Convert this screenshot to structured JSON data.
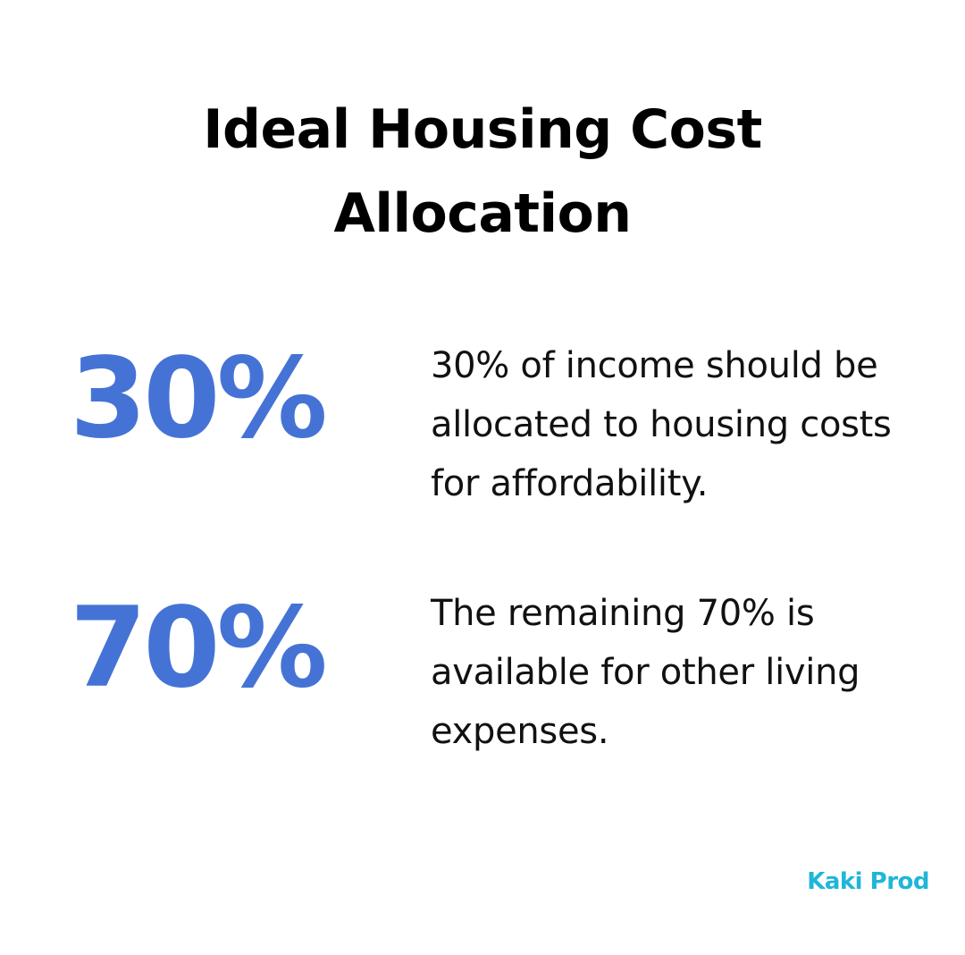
{
  "title": "Ideal Housing Cost Allocation",
  "stats": [
    {
      "value": "30%",
      "description": "30% of income should be allocated to housing costs for affordability."
    },
    {
      "value": "70%",
      "description": "The remaining 70% is available for other living expenses."
    }
  ],
  "brand": "Kaki Prod",
  "colors": {
    "accent": "#4573d5",
    "brand": "#1fb6d8",
    "text": "#111111",
    "background": "#ffffff"
  }
}
